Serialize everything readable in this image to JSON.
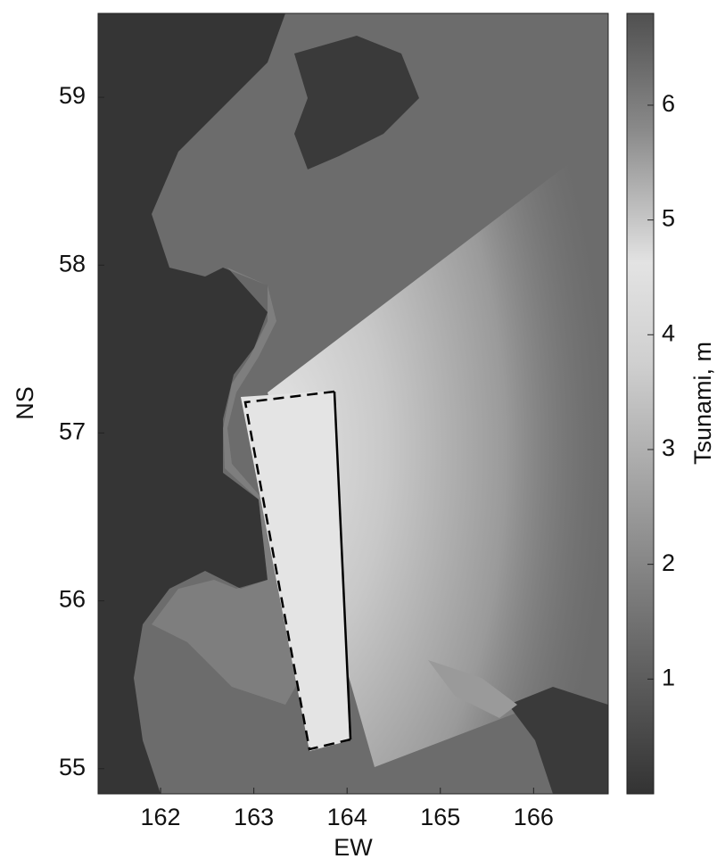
{
  "map": {
    "xlabel": "EW",
    "ylabel": "NS",
    "xlim": [
      161.33,
      166.8
    ],
    "ylim": [
      54.85,
      59.5
    ],
    "xticks": [
      162,
      163,
      164,
      165,
      166
    ],
    "yticks": [
      55,
      56,
      57,
      58,
      59
    ],
    "colorbar": {
      "label": "Tsunami, m",
      "lim": [
        0,
        6.8
      ],
      "ticks": [
        1,
        2,
        3,
        4,
        5,
        6
      ]
    }
  }
}
